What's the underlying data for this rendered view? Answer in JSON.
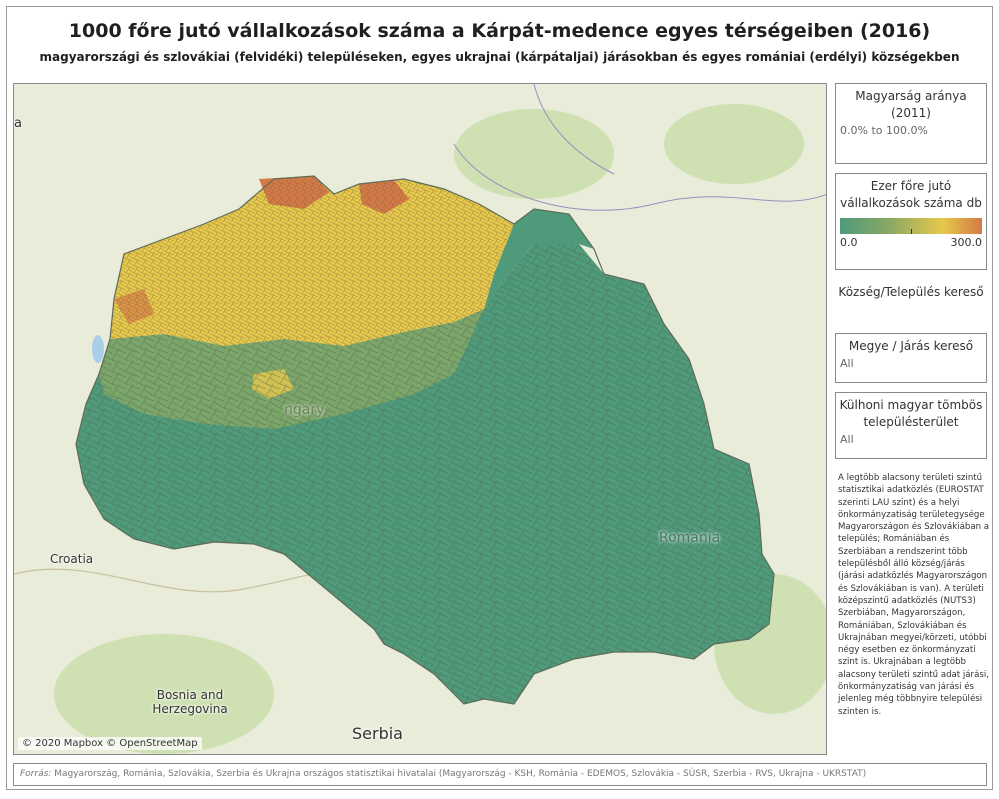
{
  "title": "1000 főre jutó vállalkozások száma a Kárpát-medence egyes térségeiben (2016)",
  "subtitle": "magyarországi és szlovákiai (felvidéki) településeken, egyes ukrajnai (kárpátaljai) járásokban és egyes romániai (erdélyi) községekben",
  "map": {
    "labels": {
      "croatia": "Croatia",
      "bosnia_line1": "Bosnia and",
      "bosnia_line2": "Herzegovina",
      "serbia": "Serbia",
      "hungary_fragment": "ngary",
      "romania": "Romania",
      "edge_fragment": "a"
    },
    "attribution": "© 2020 Mapbox © OpenStreetMap",
    "colors": {
      "low": "#4f9a7a",
      "mid": "#8aa864",
      "high": "#e6c84c",
      "max": "#d57a46",
      "base": "#e8ecd9",
      "forest": "#cfe0b3",
      "water": "#a9cfe8"
    }
  },
  "panels": {
    "hungarian_share": {
      "title": "Magyarság aránya (2011)",
      "range": "0.0% to 100.0%"
    },
    "legend": {
      "title": "Ezer főre jutó vállalkozások száma db",
      "min": "0.0",
      "max": "300.0"
    },
    "settlement_search": {
      "title": "Község/Település kereső"
    },
    "county_search": {
      "title": "Megye / Járás kereső",
      "value": "All"
    },
    "block_area": {
      "title": "Külhoni magyar tömbös településterület",
      "value": "All"
    }
  },
  "note": "A legtöbb alacsony területi szintű statisztikai adatközlés (EUROSTAT szerinti LAU szint) és a helyi önkormányzatiság területegysége Magyarországon és Szlovákiában a település; Romániában és Szerbiában a rendszerint több településből álló község/járás (járási adatközlés Magyarországon és Szlovákiában is van). A területi középszintű adatközlés (NUTS3) Szerbiában, Magyarországon, Romániában, Szlovákiában és Ukrajnában megyei/körzeti, utóbbi négy esetben ez önkormányzati szint is. Ukrajnában a legtöbb alacsony területi szintű adat járási, önkormányzatiság van járási és jelenleg még többnyire települési szinten is.",
  "footer": {
    "label": "Forrás:",
    "text": " Magyarország, Románia, Szlovákia, Szerbia és Ukrajna országos statisztikai hivatalai (Magyarország - KSH, Románia - EDEMOS, Szlovákia - SÚSR, Szerbia - RVS, Ukrajna - UKRSTAT)"
  }
}
